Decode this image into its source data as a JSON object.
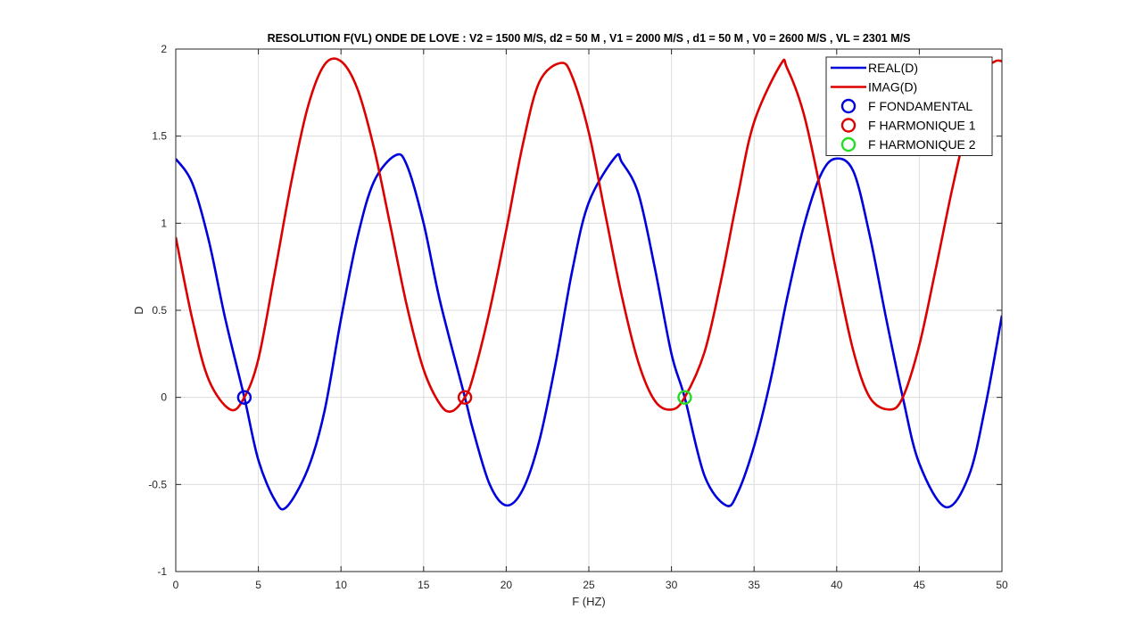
{
  "chart_data": {
    "type": "line",
    "title": "RESOLUTION F(VL) ONDE DE LOVE : V2 = 1500 M/S, d2 = 50 M , V1 = 2000  M/S , d1 = 50 M , V0 = 2600 M/S , VL = 2301 M/S",
    "xlabel": "F (HZ)",
    "ylabel": "D",
    "xlim": [
      0,
      50
    ],
    "ylim": [
      -1,
      2
    ],
    "xticks": [
      0,
      5,
      10,
      15,
      20,
      25,
      30,
      35,
      40,
      45,
      50
    ],
    "yticks": [
      -1,
      -0.5,
      0,
      0.5,
      1,
      1.5,
      2
    ],
    "xtick_labels": [
      "0",
      "5",
      "10",
      "15",
      "20",
      "25",
      "30",
      "35",
      "40",
      "45",
      "50"
    ],
    "ytick_labels": [
      "-1",
      "-0.5",
      "0",
      "0.5",
      "1",
      "1.5",
      "2"
    ],
    "grid": true,
    "legend_position": "top-right",
    "series": [
      {
        "name": "REAL(D)",
        "kind": "line",
        "color": "#0000dd",
        "x": [
          0,
          1,
          2,
          3,
          4.15,
          5,
          6,
          6.7,
          8,
          9,
          10,
          11,
          12,
          13.3,
          14,
          15,
          16,
          17.5,
          18,
          19,
          20,
          21,
          22,
          23,
          24,
          25,
          26.6,
          27,
          28,
          29,
          30,
          30.8,
          32,
          33.3,
          34,
          35,
          36,
          37,
          38,
          39,
          39.9,
          41,
          42,
          43,
          44,
          45,
          46.6,
          48,
          49,
          50
        ],
        "y": [
          1.37,
          1.23,
          0.9,
          0.45,
          0.0,
          -0.36,
          -0.59,
          -0.63,
          -0.41,
          -0.08,
          0.45,
          0.92,
          1.24,
          1.39,
          1.33,
          1.0,
          0.55,
          0.0,
          -0.19,
          -0.5,
          -0.62,
          -0.53,
          -0.25,
          0.2,
          0.73,
          1.12,
          1.38,
          1.35,
          1.17,
          0.74,
          0.25,
          0.0,
          -0.45,
          -0.62,
          -0.55,
          -0.28,
          0.1,
          0.57,
          0.98,
          1.27,
          1.37,
          1.3,
          0.93,
          0.45,
          0.0,
          -0.38,
          -0.63,
          -0.45,
          -0.05,
          0.47
        ]
      },
      {
        "name": "IMAG(D)",
        "kind": "line",
        "color": "#dd0000",
        "x": [
          0,
          1,
          2,
          3.3,
          4.15,
          5,
          6,
          7,
          8,
          9,
          10,
          11,
          12,
          13,
          14,
          15,
          16,
          16.7,
          17.5,
          18,
          19,
          20,
          21,
          22,
          23.3,
          24,
          25,
          26,
          27,
          28,
          29,
          30,
          30.8,
          32,
          33,
          34,
          35,
          36.6,
          37,
          38,
          39,
          40,
          41,
          42,
          43.2,
          44,
          45,
          46,
          47,
          48,
          49,
          49.6,
          50
        ],
        "y": [
          0.92,
          0.45,
          0.1,
          -0.07,
          0.0,
          0.22,
          0.72,
          1.24,
          1.67,
          1.91,
          1.93,
          1.77,
          1.43,
          0.98,
          0.52,
          0.16,
          -0.04,
          -0.08,
          0.0,
          0.12,
          0.5,
          0.96,
          1.45,
          1.81,
          1.92,
          1.84,
          1.52,
          1.05,
          0.58,
          0.2,
          -0.02,
          -0.07,
          0.0,
          0.26,
          0.67,
          1.15,
          1.58,
          1.91,
          1.89,
          1.63,
          1.2,
          0.71,
          0.27,
          0.0,
          -0.07,
          0.0,
          0.3,
          0.74,
          1.2,
          1.6,
          1.87,
          1.93,
          1.93
        ]
      },
      {
        "name": "F FONDAMENTAL",
        "kind": "marker",
        "color": "#0000dd",
        "x": [
          4.15
        ],
        "y": [
          0
        ]
      },
      {
        "name": "F HARMONIQUE 1",
        "kind": "marker",
        "color": "#dd0000",
        "x": [
          17.5
        ],
        "y": [
          0
        ]
      },
      {
        "name": "F HARMONIQUE 2",
        "kind": "marker",
        "color": "#22dd22",
        "x": [
          30.8
        ],
        "y": [
          0
        ]
      }
    ]
  }
}
